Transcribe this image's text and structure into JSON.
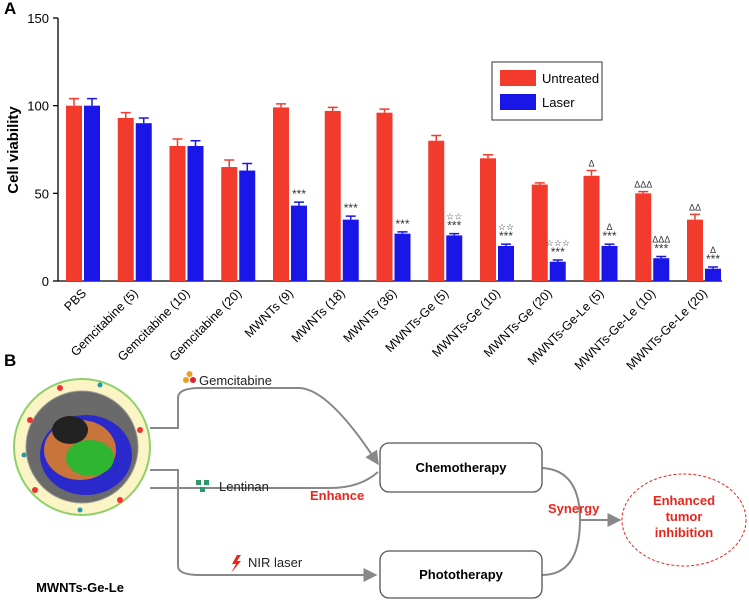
{
  "panel_labels": [
    "A",
    "B"
  ],
  "chart_data": {
    "type": "bar",
    "ylabel": "Cell viability",
    "categories": [
      "PBS",
      "Gemcitabine (5)",
      "Gemcitabine (10)",
      "Gemcitabine (20)",
      "MWNTs (9)",
      "MWNTs (18)",
      "MWNTs (36)",
      "MWNTs-Ge (5)",
      "MWNTs-Ge (10)",
      "MWNTs-Ge (20)",
      "MWNTs-Ge-Le (5)",
      "MWNTs-Ge-Le (10)",
      "MWNTs-Ge-Le (20)"
    ],
    "series": [
      {
        "name": "Untreated",
        "color": "#f23b2d",
        "values": [
          100,
          93,
          77,
          65,
          99,
          97,
          96,
          80,
          70,
          55,
          60,
          50,
          35
        ],
        "errors": [
          4,
          3,
          4,
          4,
          2,
          2,
          2,
          3,
          2,
          1,
          3,
          1,
          3
        ],
        "annotations": [
          null,
          null,
          null,
          null,
          null,
          null,
          null,
          null,
          null,
          null,
          [
            "Δ"
          ],
          [
            "ΔΔΔ"
          ],
          [
            "ΔΔ"
          ]
        ]
      },
      {
        "name": "Laser",
        "color": "#1a16e8",
        "values": [
          100,
          90,
          77,
          63,
          43,
          35,
          27,
          26,
          20,
          11,
          20,
          13,
          7
        ],
        "errors": [
          4,
          3,
          3,
          4,
          2,
          2,
          1,
          1,
          1,
          1,
          1,
          1,
          1
        ],
        "annotations": [
          null,
          null,
          null,
          null,
          [
            "***"
          ],
          [
            "***"
          ],
          [
            "***"
          ],
          [
            "☆☆",
            "***"
          ],
          [
            "☆☆",
            "***"
          ],
          [
            "☆☆☆",
            "***"
          ],
          [
            "Δ",
            "***"
          ],
          [
            "ΔΔΔ",
            "***"
          ],
          [
            "Δ",
            "***"
          ]
        ]
      }
    ],
    "ylim": [
      0,
      150
    ],
    "yticks": [
      0,
      50,
      100,
      150
    ],
    "legend": "upper right"
  },
  "diagram": {
    "material": "MWNTs-Ge-Le",
    "inputs": [
      "Gemcitabine",
      "Lentinan",
      "NIR laser"
    ],
    "therapies": [
      "Chemotherapy",
      "Phototherapy"
    ],
    "enhance": "Enhance",
    "synergy": "Synergy",
    "outcome": [
      "Enhanced",
      "tumor",
      "inhibition"
    ]
  }
}
